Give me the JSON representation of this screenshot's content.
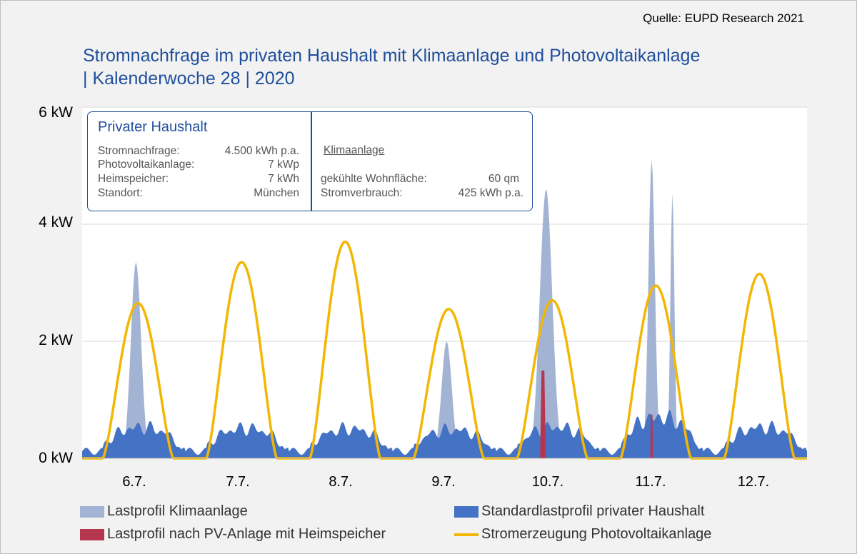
{
  "source": "Quelle: EUPD Research 2021",
  "title_line1": "Stromnachfrage im privaten Haushalt mit Klimaanlage und Photovoltaikanlage",
  "title_line2": "| Kalenderwoche 28 | 2020",
  "info_box": {
    "heading": "Privater Haushalt",
    "rows": [
      {
        "label": "Stromnachfrage:",
        "value": "4.500 kWh p.a."
      },
      {
        "label": "Photovoltaikanlage:",
        "value": "7 kWp"
      },
      {
        "label": "Heimspeicher:",
        "value": "7 kWh"
      },
      {
        "label": "Standort:",
        "value": "München"
      }
    ],
    "ac_heading": "Klimaanlage",
    "ac_rows": [
      {
        "label": "gekühlte Wohnfläche:",
        "value": "60 qm"
      },
      {
        "label": "Stromverbrauch:",
        "value": "425 kWh p.a."
      }
    ]
  },
  "colors": {
    "klima": "#a3b3d3",
    "standard": "#4472c4",
    "pv_storage": "#b5374f",
    "pv": "#f2b705",
    "title": "#1f4e9c"
  },
  "chart_data": {
    "type": "area",
    "y_unit": "kW",
    "ylim": [
      0,
      6
    ],
    "yticks": [
      "0 kW",
      "2 kW",
      "4 kW",
      "6 kW"
    ],
    "categories": [
      "6.7.",
      "7.7.",
      "8.7.",
      "9.7.",
      "10.7.",
      "11.7.",
      "12.7."
    ],
    "grid": true,
    "legend_position": "bottom",
    "series": [
      {
        "name": "Lastprofil Klimaanlage",
        "kind": "area",
        "daily_peak_kw": [
          3.35,
          0,
          0,
          2.0,
          4.6,
          5.1,
          0
        ]
      },
      {
        "name": "Standardlastprofil privater Haushalt",
        "kind": "area",
        "daily_peak_kw": [
          0.6,
          0.58,
          0.57,
          0.55,
          0.6,
          0.8,
          0.6
        ]
      },
      {
        "name": "Lastprofil nach PV-Anlage mit Heimspeicher",
        "kind": "area",
        "daily_peak_kw": [
          0,
          0,
          0,
          0,
          1.5,
          0.75,
          0
        ]
      },
      {
        "name": "Stromerzeugung Photovoltaikanlage",
        "kind": "line",
        "daily_peak_kw": [
          2.65,
          3.35,
          3.7,
          2.55,
          2.7,
          2.95,
          3.15
        ]
      }
    ]
  }
}
